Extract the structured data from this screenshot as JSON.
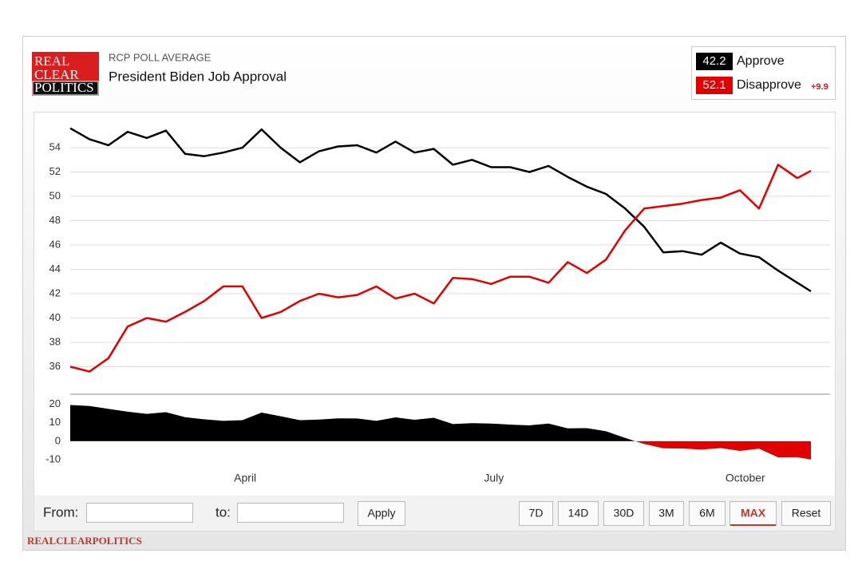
{
  "header": {
    "logo": [
      "REAL",
      "CLEAR",
      "POLITICS"
    ],
    "subtitle": "RCP POLL AVERAGE"
  },
  "chart_data": [
    {
      "type": "line",
      "title": "President Biden Job Approval",
      "x": [
        0,
        7,
        14,
        21,
        28,
        35,
        42,
        49,
        56,
        63,
        70,
        77,
        84,
        91,
        98,
        105,
        112,
        119,
        126,
        133,
        140,
        147,
        154,
        161,
        168,
        175,
        182,
        189,
        196,
        203,
        210,
        217,
        224,
        231,
        238,
        245,
        252,
        259,
        266,
        271
      ],
      "xlim": [
        0,
        278
      ],
      "xticks": [
        {
          "value": 64,
          "label": "April"
        },
        {
          "value": 155,
          "label": "July"
        },
        {
          "value": 247,
          "label": "October"
        }
      ],
      "ylim": [
        34,
        56.3
      ],
      "yticks": [
        36,
        38,
        40,
        42,
        44,
        46,
        48,
        50,
        52,
        54
      ],
      "grid": true,
      "series": [
        {
          "name": "Approve",
          "color": "#000000",
          "latest": 42.2,
          "values": [
            55.6,
            54.7,
            54.2,
            55.3,
            54.8,
            55.4,
            53.5,
            53.3,
            53.6,
            54.0,
            55.5,
            54.0,
            52.8,
            53.7,
            54.1,
            54.2,
            53.6,
            54.5,
            53.6,
            53.9,
            52.6,
            53.0,
            52.4,
            52.4,
            52.0,
            52.5,
            51.6,
            50.8,
            50.2,
            49.0,
            47.5,
            45.4,
            45.5,
            45.2,
            46.2,
            45.3,
            45.0,
            43.9,
            42.9,
            42.2
          ]
        },
        {
          "name": "Disapprove",
          "color": "#e00000",
          "latest": 52.1,
          "values": [
            36.0,
            35.6,
            36.7,
            39.3,
            40.0,
            39.7,
            40.5,
            41.4,
            42.6,
            42.6,
            40.0,
            40.5,
            41.4,
            42.0,
            41.7,
            41.9,
            42.6,
            41.6,
            42.0,
            41.2,
            43.3,
            43.2,
            42.8,
            43.4,
            43.4,
            42.9,
            44.6,
            43.7,
            44.8,
            47.2,
            49.0,
            49.2,
            49.4,
            49.7,
            49.9,
            50.5,
            49.0,
            52.6,
            51.5,
            52.1
          ]
        }
      ],
      "spread": {
        "value": 9.9,
        "label": "+9.9"
      }
    },
    {
      "type": "area",
      "ylim": [
        -16,
        25
      ],
      "yticks": [
        20,
        10,
        0,
        -10
      ],
      "positive_color": "#000000",
      "negative_color": "#e00000",
      "values": [
        19.6,
        19.1,
        17.5,
        16.0,
        14.8,
        15.7,
        13.0,
        11.9,
        11.0,
        11.4,
        15.5,
        13.5,
        11.4,
        11.7,
        12.4,
        12.3,
        11.0,
        12.9,
        11.6,
        12.7,
        9.3,
        9.8,
        9.6,
        9.0,
        8.6,
        9.6,
        7.0,
        7.1,
        5.4,
        1.8,
        -1.5,
        -3.8,
        -3.9,
        -4.5,
        -3.7,
        -5.2,
        -4.0,
        -8.7,
        -8.6,
        -9.9
      ]
    }
  ],
  "controls": {
    "from": "From:",
    "to": "to:",
    "apply": "Apply",
    "buttons": [
      "7D",
      "14D",
      "30D",
      "3M",
      "6M",
      "MAX",
      "Reset"
    ],
    "active": "MAX"
  },
  "footer": "REALCLEARPOLITICS"
}
